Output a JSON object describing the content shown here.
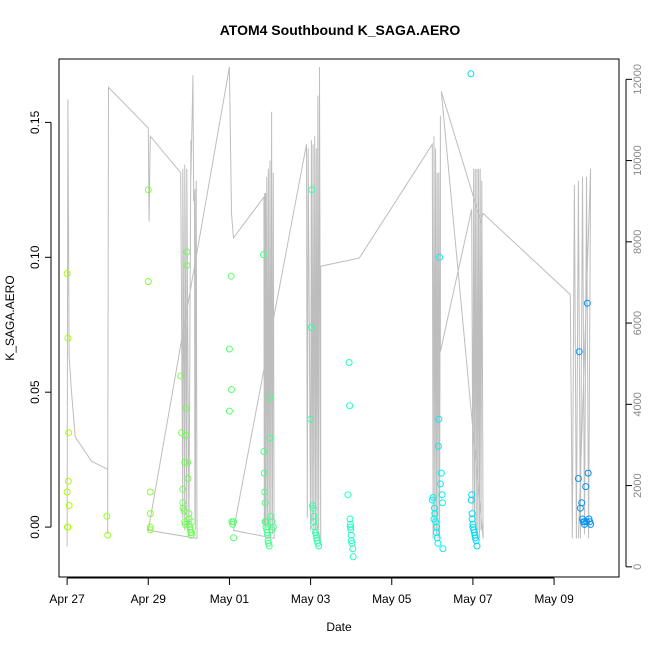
{
  "chart_data": {
    "type": "scatter",
    "title": "ATOM4 Southbound K_SAGA.AERO",
    "xlabel": "Date",
    "ylabel": "K_SAGA.AERO",
    "x_unit": "days since Apr 27",
    "xlim": [
      -0.2,
      13.6
    ],
    "ylim": [
      -0.0185,
      0.1735
    ],
    "y_ticks": [
      0.0,
      0.05,
      0.1,
      0.15
    ],
    "y_tick_labels": [
      "0.00",
      "0.05",
      "0.10",
      "0.15"
    ],
    "x_ticks": [
      0,
      2,
      4,
      6,
      8,
      10,
      12
    ],
    "x_tick_labels": [
      "Apr 27",
      "Apr 29",
      "May 01",
      "May 03",
      "May 05",
      "May 07",
      "May 09"
    ],
    "secondary_axis": {
      "label": "",
      "ylim": [
        -250,
        12500
      ],
      "ticks": [
        0,
        2000,
        4000,
        6000,
        8000,
        10000,
        12000
      ],
      "tick_labels": [
        "0",
        "2000",
        "4000",
        "6000",
        "8000",
        "10000",
        "12000"
      ]
    },
    "color_scale": {
      "start": "#aaff00",
      "mid": "#00ffee",
      "end": "#0088ff",
      "note": "colour by time"
    },
    "series": [
      {
        "name": "K_SAGA.AERO",
        "x": [
          0,
          0.02,
          0.04,
          0.03,
          0.0,
          0.05,
          0.01,
          0.02,
          0.98,
          1.0,
          2.0,
          2.0,
          2.05,
          2.05,
          2.05,
          2.05,
          2.8,
          2.82,
          2.85,
          2.85,
          2.86,
          2.88,
          2.9,
          2.9,
          2.91,
          2.92,
          2.93,
          2.95,
          2.95,
          2.97,
          2.98,
          3.0,
          3.0,
          3.0,
          3.02,
          3.03,
          3.05,
          3.06,
          3.07,
          3.08,
          4.0,
          4.0,
          4.04,
          4.05,
          4.06,
          4.06,
          4.1,
          4.1,
          4.08,
          4.84,
          4.85,
          4.86,
          4.87,
          4.88,
          4.88,
          4.9,
          4.9,
          4.92,
          4.93,
          4.94,
          4.95,
          4.96,
          4.98,
          5.0,
          5.0,
          5.02,
          5.04,
          5.05,
          5.08,
          6.0,
          6.02,
          6.03,
          6.05,
          6.06,
          6.08,
          6.08,
          6.1,
          6.12,
          6.14,
          6.15,
          6.16,
          6.18,
          6.2,
          6.92,
          6.95,
          6.96,
          6.97,
          6.98,
          6.98,
          6.99,
          7.0,
          7.0,
          7.02,
          7.04,
          7.05,
          9.0,
          9.02,
          9.04,
          9.05,
          9.06,
          9.08,
          9.1,
          9.1,
          9.12,
          9.14,
          9.15,
          9.16,
          9.18,
          9.2,
          9.22,
          9.24,
          9.25,
          9.26,
          9.95,
          9.96,
          9.97,
          9.98,
          9.98,
          10.0,
          10.0,
          10.02,
          10.04,
          10.05,
          10.06,
          10.08,
          10.1,
          12.6,
          12.62,
          12.65,
          12.68,
          12.7,
          12.72,
          12.75,
          12.75,
          12.78,
          12.8,
          12.82,
          12.84,
          12.86,
          12.88,
          12.9
        ],
        "y": [
          0.094,
          0.07,
          0.035,
          0.017,
          0.013,
          0.008,
          0.0,
          0.0,
          0.004,
          -0.003,
          0.125,
          0.091,
          0.013,
          0.005,
          -0.001,
          0.0,
          0.056,
          0.035,
          0.014,
          0.009,
          0.007,
          0.006,
          0.024,
          0.002,
          0.001,
          0.034,
          0.044,
          0.097,
          0.102,
          0.024,
          0.018,
          0.005,
          0.003,
          0.001,
          0.0,
          -0.001,
          -0.002,
          -0.003,
          -0.002,
          0.002,
          0.043,
          0.066,
          0.093,
          0.051,
          0.002,
          0.002,
          -0.004,
          0.002,
          0.001,
          0.101,
          0.028,
          0.02,
          0.013,
          0.009,
          0.002,
          0.002,
          0.0,
          -0.001,
          -0.002,
          -0.003,
          -0.005,
          -0.006,
          -0.007,
          0.033,
          0.048,
          0.004,
          0.002,
          -0.001,
          0.0,
          0.04,
          0.074,
          0.125,
          0.008,
          0.007,
          0.004,
          0.002,
          0.0,
          -0.002,
          -0.003,
          -0.004,
          -0.005,
          -0.006,
          -0.007,
          0.012,
          0.061,
          0.045,
          0.003,
          0.001,
          0.0,
          -0.001,
          -0.003,
          -0.005,
          -0.006,
          -0.008,
          -0.011,
          0.01,
          0.011,
          0.003,
          0.007,
          0.005,
          0.002,
          0.0,
          -0.002,
          -0.004,
          -0.006,
          0.03,
          0.04,
          0.1,
          0.016,
          0.02,
          0.012,
          0.009,
          -0.008,
          0.168,
          0.01,
          0.012,
          0.005,
          0.003,
          0.001,
          0.0,
          -0.001,
          -0.002,
          -0.003,
          -0.004,
          -0.005,
          -0.007,
          0.018,
          0.065,
          0.007,
          0.009,
          0.003,
          0.002,
          0.001,
          0.002,
          0.015,
          0.002,
          0.083,
          0.02,
          0.003,
          0.002,
          0.001
        ]
      },
      {
        "name": "altitude (secondary axis, grey line)",
        "x": [
          0,
          0.02,
          0.05,
          0.1,
          0.2,
          0.6,
          1.0,
          1.0,
          1.0,
          1.02,
          2.0,
          2.02,
          2.05,
          2.8,
          2.85,
          2.85,
          2.9,
          2.9,
          2.95,
          2.95,
          3.0,
          3.0,
          3.05,
          3.05,
          3.1,
          3.1,
          3.12,
          3.14,
          3.15,
          3.15,
          3.16,
          3.18,
          3.2,
          2.0,
          4.0,
          4.05,
          4.1,
          4.85,
          4.86,
          4.87,
          4.88,
          4.89,
          4.9,
          4.92,
          4.94,
          4.96,
          4.98,
          5.0,
          5.02,
          5.04,
          5.06,
          5.08,
          5.1,
          4.1,
          5.9,
          5.92,
          5.94,
          6.0,
          6.02,
          6.04,
          6.06,
          6.08,
          6.1,
          6.12,
          6.14,
          6.16,
          6.18,
          6.2,
          6.22,
          6.25,
          6.25,
          7.2,
          9.0,
          9.02,
          9.04,
          9.06,
          9.08,
          9.1,
          9.12,
          9.14,
          9.16,
          9.18,
          9.2,
          9.2,
          9.97,
          10.0,
          10.02,
          10.04,
          10.06,
          10.08,
          10.1,
          10.12,
          10.14,
          10.16,
          10.18,
          10.2,
          10.22,
          10.25,
          9.22,
          10.2,
          10.25,
          12.4,
          12.45,
          12.5,
          12.55,
          12.6,
          12.65,
          12.7,
          12.75,
          12.8,
          12.85,
          12.9,
          12.6
        ],
        "y": [
          500,
          11500,
          5200,
          4400,
          3200,
          2600,
          2400,
          800,
          1200,
          11800,
          10800,
          8500,
          10600,
          9700,
          1200,
          9800,
          900,
          9900,
          1000,
          9800,
          800,
          700,
          10500,
          9600,
          12000,
          12100,
          9000,
          9200,
          1200,
          9300,
          900,
          9500,
          700,
          900,
          12300,
          8700,
          8100,
          9100,
          1000,
          9200,
          1000,
          9200,
          900,
          9600,
          1000,
          9800,
          700,
          10000,
          900,
          11200,
          800,
          9700,
          700,
          900,
          10400,
          1200,
          10300,
          900,
          10500,
          1100,
          10400,
          800,
          10600,
          900,
          10300,
          700,
          11600,
          900,
          12300,
          600,
          7400,
          7600,
          10400,
          700,
          10600,
          900,
          10300,
          800,
          9700,
          700,
          9700,
          700,
          11100,
          5300,
          8800,
          1400,
          9800,
          1200,
          9800,
          800,
          9800,
          900,
          9800,
          700,
          9800,
          900,
          9500,
          700,
          11700,
          8500,
          8700,
          6700,
          700,
          9400,
          700,
          9500,
          700,
          9600,
          800,
          9600,
          700,
          9800,
          700
        ]
      }
    ]
  }
}
